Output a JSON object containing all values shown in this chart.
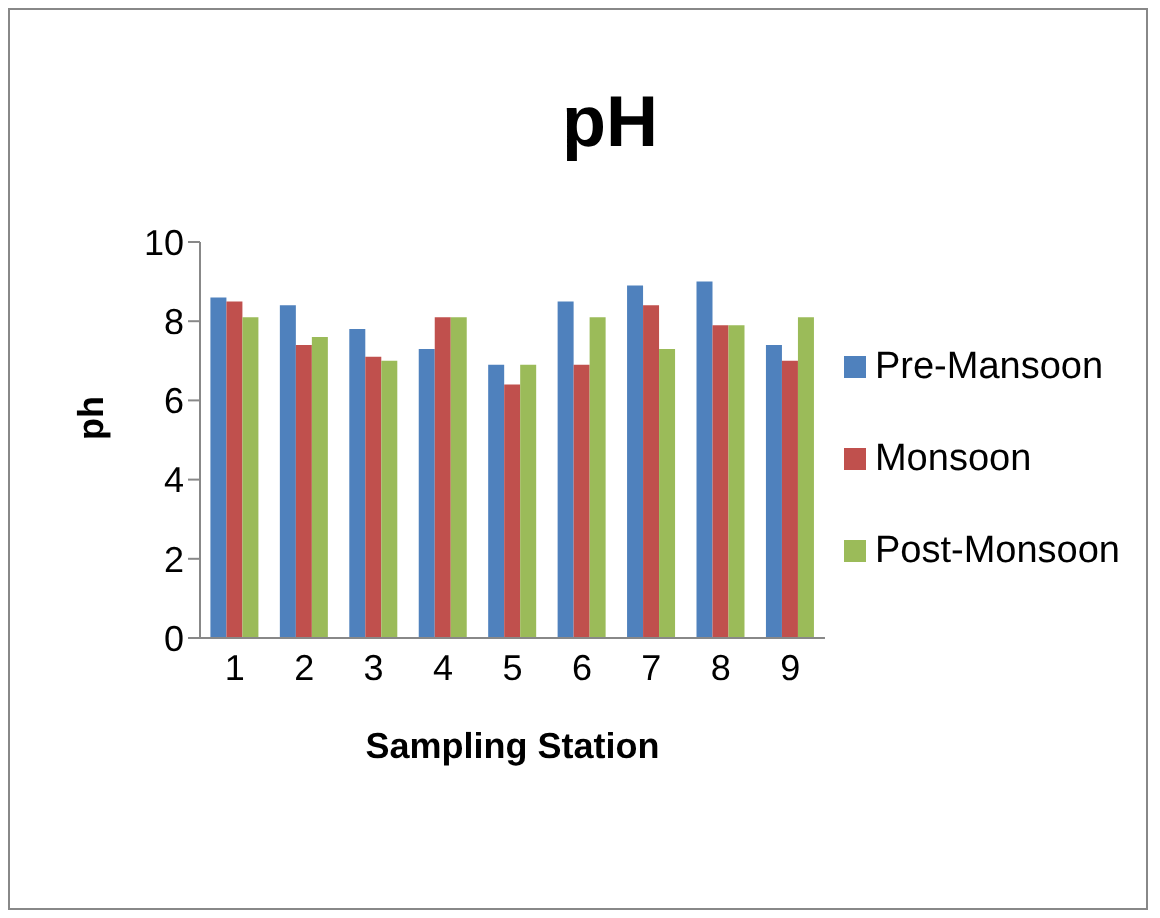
{
  "chart_data": {
    "type": "bar",
    "title": "pH",
    "xlabel": "Sampling Station",
    "ylabel": "ph",
    "categories": [
      "1",
      "2",
      "3",
      "4",
      "5",
      "6",
      "7",
      "8",
      "9"
    ],
    "series": [
      {
        "name": "Pre-Mansoon",
        "color": "#4f81bd",
        "values": [
          8.6,
          8.4,
          7.8,
          7.3,
          6.9,
          8.5,
          8.9,
          9.0,
          7.4
        ]
      },
      {
        "name": "Monsoon",
        "color": "#c0504d",
        "values": [
          8.5,
          7.4,
          7.1,
          8.1,
          6.4,
          6.9,
          8.4,
          7.9,
          7.0
        ]
      },
      {
        "name": "Post-Monsoon",
        "color": "#9bbb59",
        "values": [
          8.1,
          7.6,
          7.0,
          8.1,
          6.9,
          8.1,
          7.3,
          7.9,
          8.1
        ]
      }
    ],
    "ylim": [
      0,
      10
    ],
    "yticks": [
      0,
      2,
      4,
      6,
      8,
      10
    ],
    "grid": false,
    "legend": "right"
  }
}
